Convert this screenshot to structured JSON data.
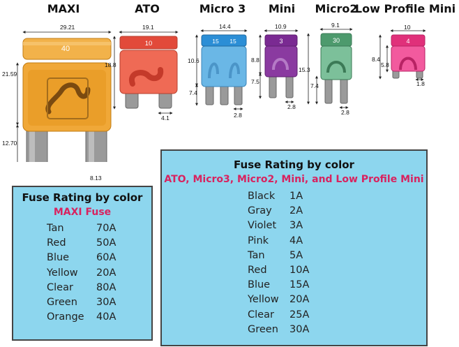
{
  "fuse_types": {
    "maxi": {
      "name": "MAXI",
      "rating": "40",
      "color": "#f0a838"
    },
    "ato": {
      "name": "ATO",
      "rating": "10",
      "color": "#ef6a55"
    },
    "micro3": {
      "name": "Micro 3",
      "rating_a": "15",
      "rating_b": "15",
      "color": "#6ab7e6"
    },
    "mini": {
      "name": "Mini",
      "rating": "3",
      "color": "#8a3aa0"
    },
    "micro2": {
      "name": "Micro2",
      "rating": "30",
      "color": "#59a57a"
    },
    "low_profile_mini": {
      "name": "Low Profile Mini",
      "rating": "4",
      "color": "#e0307a"
    }
  },
  "dimensions": {
    "maxi_width": "29.21",
    "maxi_height": "21.59",
    "maxi_blade_length": "12.70",
    "maxi_blade_width": "8.13",
    "ato_width": "19.1",
    "ato_height": "18.8",
    "ato_blade_width": "4.1",
    "micro3_width": "14.4",
    "micro3_height": "10.6",
    "micro3_blade_length": "7.4",
    "micro3_blade_width": "2.8",
    "mini_width": "10.9",
    "mini_height": "8.8",
    "mini_blade_length": "7.5",
    "mini_blade_width": "2.8",
    "micro2_width": "9.1",
    "micro2_height": "15.3",
    "micro2_blade_length": "7.4",
    "micro2_blade_width": "2.8",
    "lpm_width": "10",
    "lpm_height": "8.4",
    "lpm_body_height": "5.8",
    "lpm_blade_width": "1.8"
  },
  "maxi_table": {
    "title": "Fuse Rating by color",
    "subtitle": "MAXI Fuse",
    "rows": [
      {
        "color": "Tan",
        "amps": "70A"
      },
      {
        "color": "Red",
        "amps": "50A"
      },
      {
        "color": "Blue",
        "amps": "60A"
      },
      {
        "color": "Yellow",
        "amps": "20A"
      },
      {
        "color": "Clear",
        "amps": "80A"
      },
      {
        "color": "Green",
        "amps": "30A"
      },
      {
        "color": "Orange",
        "amps": "40A"
      }
    ]
  },
  "small_table": {
    "title": "Fuse Rating by color",
    "subtitle": "ATO, Micro3, Micro2, Mini, and Low Profile Mini",
    "rows": [
      {
        "color": "Black",
        "amps": "1A"
      },
      {
        "color": "Gray",
        "amps": "2A"
      },
      {
        "color": "Violet",
        "amps": "3A"
      },
      {
        "color": "Pink",
        "amps": "4A"
      },
      {
        "color": "Tan",
        "amps": "5A"
      },
      {
        "color": "Red",
        "amps": "10A"
      },
      {
        "color": "Blue",
        "amps": "15A"
      },
      {
        "color": "Yellow",
        "amps": "20A"
      },
      {
        "color": "Clear",
        "amps": "25A"
      },
      {
        "color": "Green",
        "amps": "30A"
      }
    ]
  }
}
